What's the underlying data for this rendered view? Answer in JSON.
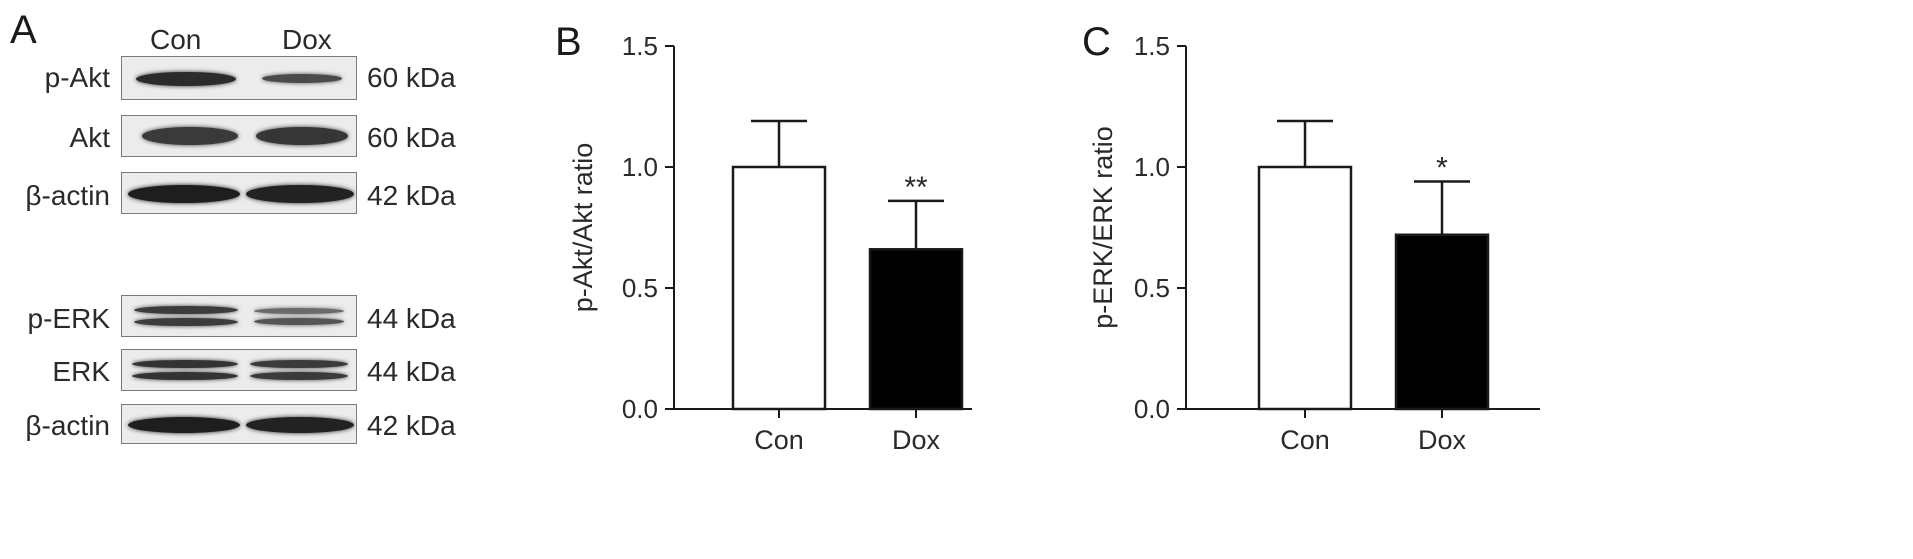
{
  "panels": {
    "a": "A",
    "b": "B",
    "c": "C"
  },
  "western_blot": {
    "columns": [
      "Con",
      "Dox"
    ],
    "group1": [
      {
        "label": "p-Akt",
        "kda": "60 kDa"
      },
      {
        "label": "Akt",
        "kda": "60 kDa"
      },
      {
        "label": "β-actin",
        "kda": "42 kDa"
      }
    ],
    "group2": [
      {
        "label": "p-ERK",
        "kda": "44 kDa"
      },
      {
        "label": "ERK",
        "kda": "44 kDa"
      },
      {
        "label": "β-actin",
        "kda": "42 kDa"
      }
    ]
  },
  "chart_data": [
    {
      "type": "bar",
      "panel": "B",
      "categories": [
        "Con",
        "Dox"
      ],
      "values": [
        1.0,
        0.66
      ],
      "errors": [
        0.19,
        0.2
      ],
      "significance": [
        "",
        "**"
      ],
      "bar_colors": [
        "#ffffff",
        "#000000"
      ],
      "ylabel": "p-Akt/Akt ratio",
      "ylim": [
        0,
        1.5
      ],
      "yticks": [
        "0.0",
        "0.5",
        "1.0",
        "1.5"
      ]
    },
    {
      "type": "bar",
      "panel": "C",
      "categories": [
        "Con",
        "Dox"
      ],
      "values": [
        1.0,
        0.72
      ],
      "errors": [
        0.19,
        0.22
      ],
      "significance": [
        "",
        "*"
      ],
      "bar_colors": [
        "#ffffff",
        "#000000"
      ],
      "ylabel": "p-ERK/ERK ratio",
      "ylim": [
        0,
        1.5
      ],
      "yticks": [
        "0.0",
        "0.5",
        "1.0",
        "1.5"
      ]
    }
  ]
}
